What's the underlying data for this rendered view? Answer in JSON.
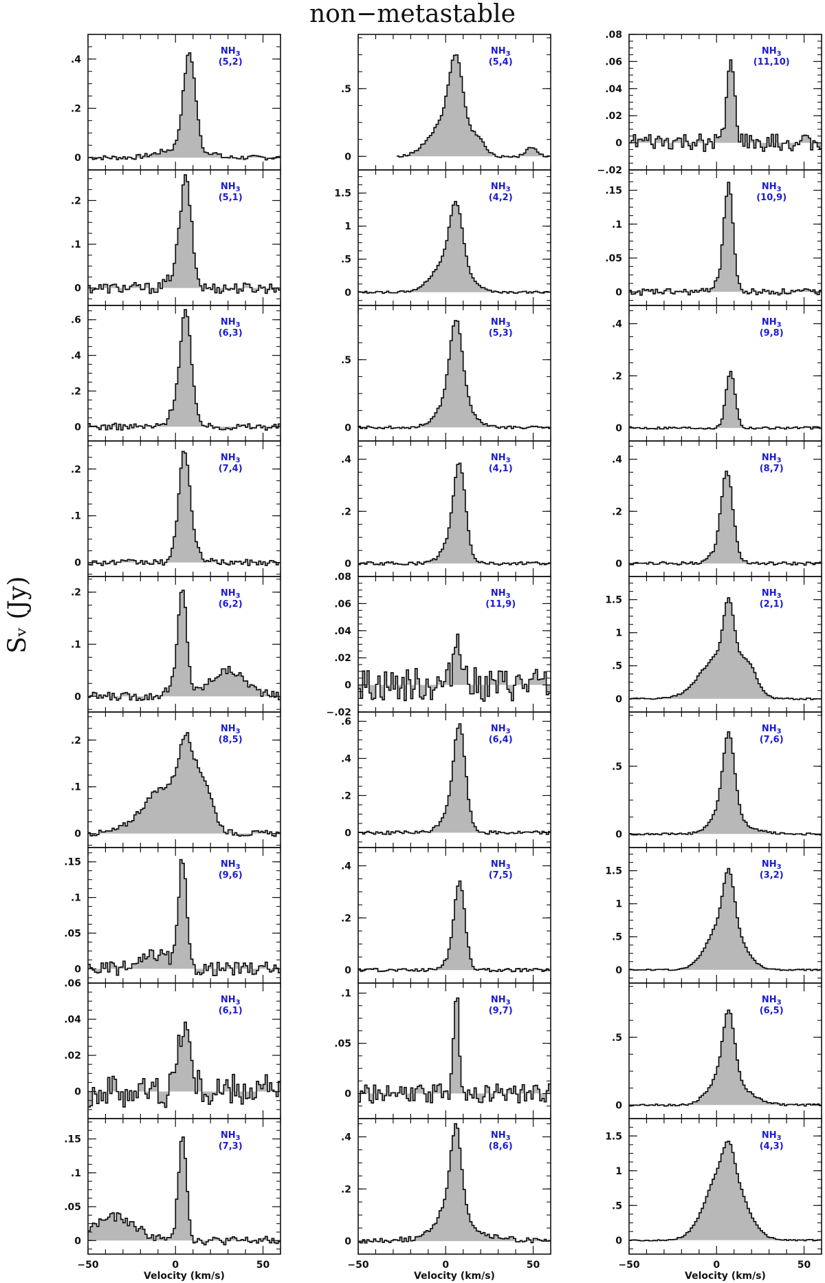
{
  "page": {
    "title": "non−metastable",
    "ylabel": "Sᵥ (Jy)"
  },
  "chart_data": {
    "type": "line",
    "title": "non−metastable",
    "xlabel": "Velocity (km/s)",
    "ylabel": "Sᵥ (Jy)",
    "xlim": [
      -50,
      60
    ],
    "xticks": [
      -50,
      0,
      50
    ],
    "grid": false,
    "panels": [
      {
        "col": 0,
        "row": 0,
        "mol": "NH3",
        "trans": "(5,2)",
        "ylim": [
          -0.05,
          0.5
        ],
        "yticks": [
          0,
          0.2,
          0.4
        ],
        "peak": 0.41,
        "center": 8,
        "width": 3.5,
        "noise": 0.006,
        "wings": [
          {
            "a": 0.03,
            "c": -2,
            "w": 9
          },
          {
            "a": 0.02,
            "c": 21,
            "w": 3
          }
        ]
      },
      {
        "col": 0,
        "row": 1,
        "mol": "NH3",
        "trans": "(5,1)",
        "ylim": [
          -0.04,
          0.27
        ],
        "yticks": [
          0,
          0.1,
          0.2
        ],
        "peak": 0.24,
        "center": 6,
        "width": 3.2,
        "noise": 0.008,
        "wings": [
          {
            "a": 0.03,
            "c": 0,
            "w": 4
          }
        ]
      },
      {
        "col": 0,
        "row": 2,
        "mol": "NH3",
        "trans": "(6,3)",
        "ylim": [
          -0.08,
          0.68
        ],
        "yticks": [
          0,
          0.2,
          0.4,
          0.6
        ],
        "peak": 0.6,
        "center": 6,
        "width": 3.0,
        "noise": 0.012,
        "wings": [
          {
            "a": 0.12,
            "c": 1,
            "w": 4
          },
          {
            "a": 0.04,
            "c": 13,
            "w": 2
          }
        ]
      },
      {
        "col": 0,
        "row": 3,
        "mol": "NH3",
        "trans": "(7,4)",
        "ylim": [
          -0.03,
          0.26
        ],
        "yticks": [
          0,
          0.1,
          0.2
        ],
        "peak": 0.23,
        "center": 5,
        "width": 3.2,
        "noise": 0.004,
        "wings": [
          {
            "a": 0.02,
            "c": 10,
            "w": 5
          }
        ]
      },
      {
        "col": 0,
        "row": 4,
        "mol": "NH3",
        "trans": "(6,2)",
        "ylim": [
          -0.03,
          0.23
        ],
        "yticks": [
          0,
          0.1,
          0.2
        ],
        "peak": 0.19,
        "center": 4,
        "width": 2.5,
        "noise": 0.005,
        "wings": [
          {
            "a": 0.05,
            "c": 30,
            "w": 10
          },
          {
            "a": 0.02,
            "c": 0,
            "w": 5
          }
        ]
      },
      {
        "col": 0,
        "row": 5,
        "mol": "NH3",
        "trans": "(8,5)",
        "ylim": [
          -0.03,
          0.26
        ],
        "yticks": [
          0,
          0.1,
          0.2
        ],
        "peak": 0.13,
        "center": 6,
        "width": 4.0,
        "noise": 0.004,
        "wings": [
          {
            "a": 0.1,
            "c": -5,
            "w": 13
          },
          {
            "a": 0.09,
            "c": 16,
            "w": 5
          }
        ]
      },
      {
        "col": 0,
        "row": 6,
        "mol": "NH3",
        "trans": "(9,6)",
        "ylim": [
          -0.02,
          0.17
        ],
        "yticks": [
          0,
          0.05,
          0.1,
          0.15
        ],
        "peak": 0.15,
        "center": 4,
        "width": 2.2,
        "noise": 0.006,
        "wings": [
          {
            "a": 0.02,
            "c": -10,
            "w": 8
          }
        ]
      },
      {
        "col": 0,
        "row": 7,
        "mol": "NH3",
        "trans": "(6,1)",
        "ylim": [
          -0.015,
          0.06
        ],
        "yticks": [
          0,
          0.02,
          0.04,
          0.06
        ],
        "peak": 0.037,
        "center": 5,
        "width": 3.5,
        "noise": 0.006,
        "wings": []
      },
      {
        "col": 0,
        "row": 8,
        "mol": "NH3",
        "trans": "(7,3)",
        "ylim": [
          -0.02,
          0.18
        ],
        "yticks": [
          0,
          0.05,
          0.1,
          0.15
        ],
        "peak": 0.16,
        "center": 4,
        "width": 2.3,
        "noise": 0.004,
        "wings": [
          {
            "a": 0.035,
            "c": -35,
            "w": 12
          }
        ]
      },
      {
        "col": 1,
        "row": 0,
        "mol": "NH3",
        "trans": "(5,4)",
        "ylim": [
          -0.1,
          0.9
        ],
        "yticks": [
          0,
          0.5
        ],
        "peak": 0.55,
        "center": 6,
        "width": 4.0,
        "noise": 0.006,
        "wings": [
          {
            "a": 0.25,
            "c": 0,
            "w": 9
          },
          {
            "a": 0.12,
            "c": 18,
            "w": 4
          },
          {
            "a": 0.07,
            "c": 49,
            "w": 3
          }
        ],
        "vstart": -28
      },
      {
        "col": 1,
        "row": 1,
        "mol": "NH3",
        "trans": "(4,2)",
        "ylim": [
          -0.2,
          1.85
        ],
        "yticks": [
          0,
          0.5,
          1,
          1.5
        ],
        "peak": 0.85,
        "center": 6,
        "width": 3.5,
        "noise": 0.01,
        "wings": [
          {
            "a": 0.55,
            "c": 3,
            "w": 9
          }
        ]
      },
      {
        "col": 1,
        "row": 2,
        "mol": "NH3",
        "trans": "(5,3)",
        "ylim": [
          -0.1,
          0.9
        ],
        "yticks": [
          0,
          0.5
        ],
        "peak": 0.55,
        "center": 6,
        "width": 3.5,
        "noise": 0.006,
        "wings": [
          {
            "a": 0.25,
            "c": 5,
            "w": 8
          }
        ]
      },
      {
        "col": 1,
        "row": 3,
        "mol": "NH3",
        "trans": "(4,1)",
        "ylim": [
          -0.05,
          0.47
        ],
        "yticks": [
          0,
          0.2,
          0.4
        ],
        "peak": 0.3,
        "center": 8,
        "width": 3.2,
        "noise": 0.004,
        "wings": [
          {
            "a": 0.1,
            "c": 5,
            "w": 6
          }
        ]
      },
      {
        "col": 1,
        "row": 4,
        "mol": "NH3",
        "trans": "(11,9)",
        "ylim": [
          -0.02,
          0.08
        ],
        "yticks": [
          -0.02,
          0,
          0.02,
          0.04,
          0.06,
          0.08
        ],
        "peak": 0.037,
        "center": 7,
        "width": 2.5,
        "noise": 0.008,
        "wings": []
      },
      {
        "col": 1,
        "row": 5,
        "mol": "NH3",
        "trans": "(6,4)",
        "ylim": [
          -0.08,
          0.65
        ],
        "yticks": [
          0,
          0.2,
          0.4,
          0.6
        ],
        "peak": 0.45,
        "center": 8,
        "width": 3.2,
        "noise": 0.006,
        "wings": [
          {
            "a": 0.15,
            "c": 5,
            "w": 6
          }
        ]
      },
      {
        "col": 1,
        "row": 6,
        "mol": "NH3",
        "trans": "(7,5)",
        "ylim": [
          -0.05,
          0.47
        ],
        "yticks": [
          0,
          0.2,
          0.4
        ],
        "peak": 0.3,
        "center": 8,
        "width": 3.0,
        "noise": 0.004,
        "wings": [
          {
            "a": 0.05,
            "c": 5,
            "w": 5
          }
        ]
      },
      {
        "col": 1,
        "row": 7,
        "mol": "NH3",
        "trans": "(9,7)",
        "ylim": [
          -0.025,
          0.11
        ],
        "yticks": [
          0,
          0.05,
          0.1
        ],
        "peak": 0.1,
        "center": 6,
        "width": 1.6,
        "noise": 0.006,
        "wings": []
      },
      {
        "col": 1,
        "row": 8,
        "mol": "NH3",
        "trans": "(8,6)",
        "ylim": [
          -0.05,
          0.47
        ],
        "yticks": [
          0,
          0.2,
          0.4
        ],
        "peak": 0.28,
        "center": 6,
        "width": 3.0,
        "noise": 0.006,
        "wings": [
          {
            "a": 0.14,
            "c": 4,
            "w": 7
          },
          {
            "a": 0.03,
            "c": 8,
            "w": 18
          }
        ]
      },
      {
        "col": 2,
        "row": 0,
        "mol": "NH3",
        "trans": "(11,10)",
        "ylim": [
          -0.02,
          0.08
        ],
        "yticks": [
          -0.02,
          0,
          0.02,
          0.04,
          0.06,
          0.08
        ],
        "peak": 0.058,
        "center": 8,
        "width": 2.3,
        "noise": 0.004,
        "wings": []
      },
      {
        "col": 2,
        "row": 1,
        "mol": "NH3",
        "trans": "(10,9)",
        "ylim": [
          -0.02,
          0.18
        ],
        "yticks": [
          0,
          0.05,
          0.1,
          0.15
        ],
        "peak": 0.15,
        "center": 7,
        "width": 2.5,
        "noise": 0.003,
        "wings": [
          {
            "a": 0.02,
            "c": 3,
            "w": 4
          }
        ]
      },
      {
        "col": 2,
        "row": 2,
        "mol": "NH3",
        "trans": "(9,8)",
        "ylim": [
          -0.05,
          0.47
        ],
        "yticks": [
          0,
          0.2,
          0.4
        ],
        "peak": 0.22,
        "center": 8,
        "width": 2.6,
        "noise": 0.003,
        "wings": []
      },
      {
        "col": 2,
        "row": 3,
        "mol": "NH3",
        "trans": "(8,7)",
        "ylim": [
          -0.05,
          0.47
        ],
        "yticks": [
          0,
          0.2,
          0.4
        ],
        "peak": 0.3,
        "center": 6,
        "width": 3.2,
        "noise": 0.004,
        "wings": [
          {
            "a": 0.06,
            "c": 4,
            "w": 6
          }
        ]
      },
      {
        "col": 2,
        "row": 4,
        "mol": "NH3",
        "trans": "(2,1)",
        "ylim": [
          -0.2,
          1.85
        ],
        "yticks": [
          0,
          0.5,
          1,
          1.5
        ],
        "peak": 0.9,
        "center": 7,
        "width": 3.0,
        "noise": 0.008,
        "wings": [
          {
            "a": 0.65,
            "c": 2,
            "w": 11
          },
          {
            "a": 0.35,
            "c": 18,
            "w": 5
          }
        ]
      },
      {
        "col": 2,
        "row": 5,
        "mol": "NH3",
        "trans": "(7,6)",
        "ylim": [
          -0.1,
          0.9
        ],
        "yticks": [
          0,
          0.5
        ],
        "peak": 0.55,
        "center": 7,
        "width": 3.2,
        "noise": 0.005,
        "wings": [
          {
            "a": 0.2,
            "c": 5,
            "w": 7
          },
          {
            "a": 0.03,
            "c": 20,
            "w": 8
          }
        ]
      },
      {
        "col": 2,
        "row": 6,
        "mol": "NH3",
        "trans": "(3,2)",
        "ylim": [
          -0.2,
          1.85
        ],
        "yticks": [
          0,
          0.5,
          1,
          1.5
        ],
        "peak": 0.75,
        "center": 7,
        "width": 3.0,
        "noise": 0.006,
        "wings": [
          {
            "a": 0.8,
            "c": 5,
            "w": 9
          }
        ]
      },
      {
        "col": 2,
        "row": 7,
        "mol": "NH3",
        "trans": "(6,5)",
        "ylim": [
          -0.1,
          0.9
        ],
        "yticks": [
          0,
          0.5
        ],
        "peak": 0.45,
        "center": 7,
        "width": 3.2,
        "noise": 0.005,
        "wings": [
          {
            "a": 0.25,
            "c": 5,
            "w": 8
          },
          {
            "a": 0.04,
            "c": 20,
            "w": 8
          }
        ]
      },
      {
        "col": 2,
        "row": 8,
        "mol": "NH3",
        "trans": "(4,3)",
        "ylim": [
          -0.2,
          1.75
        ],
        "yticks": [
          0,
          0.5,
          1,
          1.5
        ],
        "peak": 0.35,
        "center": 7,
        "width": 3.0,
        "noise": 0.006,
        "wings": [
          {
            "a": 1.1,
            "c": 5,
            "w": 10
          }
        ]
      }
    ]
  }
}
